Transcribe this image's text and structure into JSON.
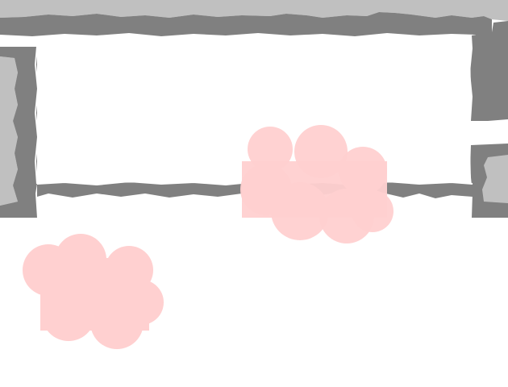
{
  "scene": {
    "type": "top-down game map",
    "colors": {
      "background": "#ffffff",
      "floor": "#ffffff",
      "wall_outer": "#c0c0c0",
      "wall_inner": "#808080",
      "wall_edge": "#ffffff",
      "fog_cloud": "#ffd0d0"
    },
    "elements": [
      {
        "kind": "wall",
        "name": "top-wall"
      },
      {
        "kind": "wall",
        "name": "left-wall"
      },
      {
        "kind": "wall",
        "name": "right-wall-upper"
      },
      {
        "kind": "wall",
        "name": "right-wall-lower"
      },
      {
        "kind": "wall",
        "name": "bottom-wall"
      },
      {
        "kind": "room-floor",
        "name": "room"
      },
      {
        "kind": "doorway",
        "name": "right-doorway"
      },
      {
        "kind": "cloud",
        "name": "pink-cloud-large"
      },
      {
        "kind": "cloud",
        "name": "pink-cloud-small"
      }
    ]
  }
}
